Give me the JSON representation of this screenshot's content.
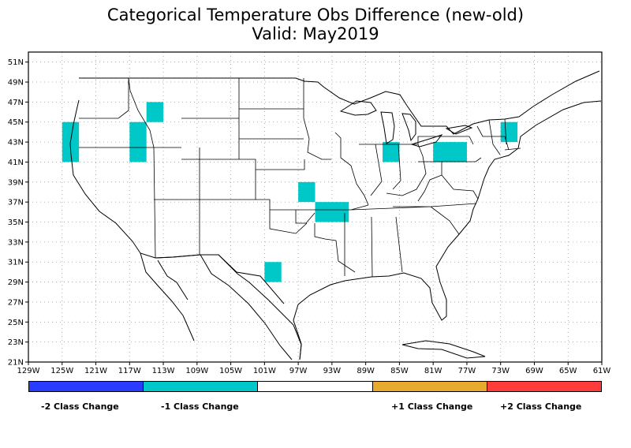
{
  "title_line1": "Categorical Temperature Obs Difference (new-old)",
  "title_line2": "Valid: May2019",
  "map": {
    "lon_range": [
      -129,
      -61
    ],
    "lat_range": [
      21,
      52
    ],
    "lon_ticks": [
      "129W",
      "125W",
      "121W",
      "117W",
      "113W",
      "109W",
      "105W",
      "101W",
      "97W",
      "93W",
      "89W",
      "85W",
      "81W",
      "77W",
      "73W",
      "69W",
      "65W",
      "61W"
    ],
    "lat_ticks": [
      "51N",
      "49N",
      "47N",
      "45N",
      "43N",
      "41N",
      "39N",
      "37N",
      "35N",
      "33N",
      "31N",
      "29N",
      "27N",
      "25N",
      "23N",
      "21N"
    ],
    "grid": true,
    "grid_style": "dotted",
    "cell_color": "#00c8c8",
    "cells": [
      {
        "lon": [
          -125,
          -123
        ],
        "lat": [
          41,
          45
        ],
        "value": -1
      },
      {
        "lon": [
          -117,
          -115
        ],
        "lat": [
          41,
          45
        ],
        "value": -1
      },
      {
        "lon": [
          -115,
          -113
        ],
        "lat": [
          45,
          47
        ],
        "value": -1
      },
      {
        "lon": [
          -97,
          -95
        ],
        "lat": [
          37,
          39
        ],
        "value": -1
      },
      {
        "lon": [
          -95,
          -91
        ],
        "lat": [
          35,
          37
        ],
        "value": -1
      },
      {
        "lon": [
          -101,
          -99
        ],
        "lat": [
          29,
          31
        ],
        "value": -1
      },
      {
        "lon": [
          -87,
          -85
        ],
        "lat": [
          41,
          43
        ],
        "value": -1
      },
      {
        "lon": [
          -81,
          -77
        ],
        "lat": [
          41,
          43
        ],
        "value": -1
      },
      {
        "lon": [
          -73,
          -71
        ],
        "lat": [
          43,
          45
        ],
        "value": -1
      }
    ]
  },
  "legend": {
    "colors": [
      "#2a3cff",
      "#00c8c8",
      "#ffffff",
      "#e6aa2e",
      "#ff3c3c"
    ],
    "labels": [
      "-2 Class Change",
      "-1 Class Change",
      "+1 Class Change",
      "+2 Class Change"
    ]
  }
}
